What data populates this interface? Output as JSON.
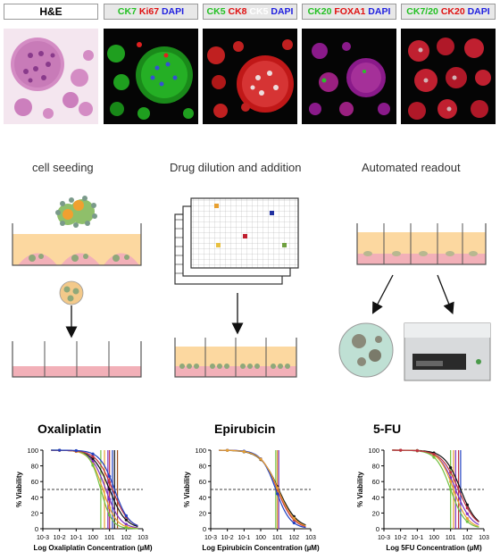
{
  "stain_labels": [
    {
      "parts": [
        {
          "t": "H&E",
          "c": "#000000"
        }
      ]
    },
    {
      "parts": [
        {
          "t": "CK7 ",
          "c": "#22c022"
        },
        {
          "t": "Ki67 ",
          "c": "#e01010"
        },
        {
          "t": "DAPI",
          "c": "#2020e0"
        }
      ]
    },
    {
      "parts": [
        {
          "t": "CK5 ",
          "c": "#22c022"
        },
        {
          "t": "CK8 ",
          "c": "#e01010"
        },
        {
          "t": "CK5 ",
          "c": "#ffffff"
        },
        {
          "t": "DAPI",
          "c": "#2020e0"
        }
      ]
    },
    {
      "parts": [
        {
          "t": "CK20 ",
          "c": "#22c022"
        },
        {
          "t": "FOXA1 ",
          "c": "#e01010"
        },
        {
          "t": "DAPI",
          "c": "#2020e0"
        }
      ]
    },
    {
      "parts": [
        {
          "t": "CK7/20 ",
          "c": "#22c022"
        },
        {
          "t": "CK20 ",
          "c": "#e01010"
        },
        {
          "t": "DAPI",
          "c": "#2020e0"
        }
      ]
    }
  ],
  "steps": {
    "seeding": "cell seeding",
    "drug": "Drug dilution and addition",
    "readout": "Automated readout"
  },
  "charts": [
    {
      "title": "Oxaliplatin",
      "xlabel": "Log Oxaliplatin Concentration (µM)",
      "ylabel": "% Viability",
      "yticks": [
        "0",
        "20",
        "40",
        "60",
        "80",
        "100"
      ],
      "xticks": [
        "10-3",
        "10-2",
        "10-1",
        "100",
        "101",
        "102",
        "103"
      ]
    },
    {
      "title": "Epirubicin",
      "xlabel": "Log Epirubicin Concentration (µM)",
      "ylabel": "% Viability",
      "yticks": [
        "0",
        "20",
        "40",
        "60",
        "80",
        "100"
      ],
      "xticks": [
        "10-3",
        "10-2",
        "10-1",
        "100",
        "101",
        "102",
        "103"
      ]
    },
    {
      "title": "5-FU",
      "xlabel": "Log 5FU Concentration (µM)",
      "ylabel": "% Viability",
      "yticks": [
        "0",
        "20",
        "40",
        "60",
        "80",
        "100"
      ],
      "xticks": [
        "10-3",
        "10-2",
        "10-1",
        "100",
        "101",
        "102",
        "103"
      ]
    }
  ],
  "chart_data": [
    {
      "type": "line",
      "title": "Oxaliplatin",
      "xscale": "log",
      "xlim": [
        0.001,
        1000
      ],
      "ylim": [
        0,
        100
      ],
      "reference_line_y": 50,
      "ic50_lines": [
        3,
        5,
        8,
        10,
        15,
        20,
        30
      ],
      "series": [
        {
          "color": "#111111",
          "ic50": 10,
          "hill": 0.9
        },
        {
          "color": "#7b2fbf",
          "ic50": 6,
          "hill": 1.0
        },
        {
          "color": "#e8a030",
          "ic50": 4,
          "hill": 1.1
        },
        {
          "color": "#6fc040",
          "ic50": 3,
          "hill": 1.3
        },
        {
          "color": "#c03040",
          "ic50": 15,
          "hill": 0.9
        },
        {
          "color": "#2040c0",
          "ic50": 20,
          "hill": 1.0
        }
      ]
    },
    {
      "type": "line",
      "title": "Epirubicin",
      "xscale": "log",
      "xlim": [
        0.001,
        1000
      ],
      "ylim": [
        0,
        100
      ],
      "reference_line_y": 50,
      "ic50_lines": [
        8,
        10,
        12
      ],
      "series": [
        {
          "color": "#111111",
          "ic50": 12,
          "hill": 0.8
        },
        {
          "color": "#c03040",
          "ic50": 10,
          "hill": 0.9
        },
        {
          "color": "#2040c0",
          "ic50": 8,
          "hill": 1.0
        },
        {
          "color": "#e8a030",
          "ic50": 11,
          "hill": 0.85
        }
      ]
    },
    {
      "type": "line",
      "title": "5-FU",
      "xscale": "log",
      "xlim": [
        0.001,
        1000
      ],
      "ylim": [
        0,
        100
      ],
      "reference_line_y": 50,
      "ic50_lines": [
        10,
        15,
        20,
        30,
        40
      ],
      "series": [
        {
          "color": "#111111",
          "ic50": 40,
          "hill": 0.9
        },
        {
          "color": "#7b2fbf",
          "ic50": 20,
          "hill": 0.9
        },
        {
          "color": "#e8a030",
          "ic50": 15,
          "hill": 1.0
        },
        {
          "color": "#6fc040",
          "ic50": 10,
          "hill": 1.0
        },
        {
          "color": "#c03040",
          "ic50": 30,
          "hill": 0.85
        }
      ]
    }
  ]
}
